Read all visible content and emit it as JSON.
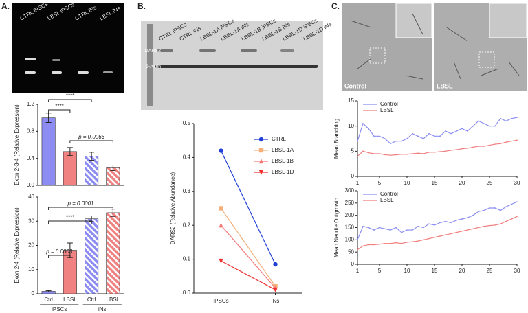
{
  "panel_labels": [
    "A.",
    "B.",
    "C."
  ],
  "gel": {
    "lanes": [
      "CTRL iPSCs",
      "LBSL iPSCs",
      "CTRL iNs",
      "LBSL iNs"
    ]
  },
  "blot": {
    "lanes": [
      "CTRL iPSCs",
      "CTRL iNs",
      "LBSL-1A iPSCs",
      "LBSL-1A iNs",
      "LBSL-1B iPSCs",
      "LBSL-1B iNs",
      "LBSL-1D iPSCs",
      "LBSL-1D iNs"
    ],
    "bands": [
      "DARS2",
      "β-Actin"
    ]
  },
  "micrographs": {
    "labels": [
      "Control",
      "LBSL"
    ]
  },
  "chart_data": [
    {
      "type": "bar",
      "ylabel": "Exon 2-3-4 (Relative Expression)",
      "categories": [
        null,
        null,
        null,
        null
      ],
      "values": [
        1.0,
        0.5,
        0.43,
        0.26
      ],
      "errors": [
        0.07,
        0.06,
        0.06,
        0.04
      ],
      "colors": [
        "#8c8cf2",
        "#f08282",
        "#8c8cf2",
        "#f08282"
      ],
      "patterns": [
        "solid",
        "solid",
        "hatch",
        "hatch"
      ],
      "ylim": [
        0,
        1.2
      ],
      "yticks": [
        {
          "value": 0,
          "label": "0.0"
        },
        0.4,
        0.8,
        1.2
      ],
      "annotations": [
        "****",
        "****",
        "p = 0.0066"
      ]
    },
    {
      "type": "bar",
      "ylabel": "Exon 2-4 (Relative Expression)",
      "categories": [
        "Ctrl",
        "LBSL",
        "Ctrl",
        "LBSL"
      ],
      "groups": [
        "iPSCs",
        "iNs"
      ],
      "values": [
        1,
        18,
        31,
        33.5
      ],
      "errors": [
        0.3,
        3,
        1.2,
        1.5
      ],
      "colors": [
        "#8c8cf2",
        "#f08282",
        "#8c8cf2",
        "#f08282"
      ],
      "patterns": [
        "solid",
        "solid",
        "hatch",
        "hatch"
      ],
      "ylim": [
        0,
        40
      ],
      "yticks": [
        0,
        10,
        20,
        30,
        40
      ],
      "annotations": [
        "p = 0.0003",
        "****",
        "p = 0.0001"
      ]
    },
    {
      "type": "line",
      "ylabel": "DARS2 (Relative Abundance)",
      "categories": [
        "iPSCs",
        "iNs"
      ],
      "series": [
        {
          "name": "CTRL",
          "color": "#1f3fd6",
          "marker": "circle",
          "values": [
            0.42,
            0.085
          ]
        },
        {
          "name": "LBSL-1A",
          "color": "#f5b079",
          "marker": "square",
          "values": [
            0.25,
            0.02
          ]
        },
        {
          "name": "LBSL-1B",
          "color": "#f47a7a",
          "marker": "triangle-up",
          "values": [
            0.2,
            0.015
          ]
        },
        {
          "name": "LBSL-1D",
          "color": "#ee3030",
          "marker": "triangle-down",
          "values": [
            0.095,
            0.01
          ]
        }
      ],
      "ylim": [
        0,
        0.5
      ],
      "yticks": [
        {
          "value": 0,
          "label": "0.0"
        },
        0.1,
        0.2,
        0.3,
        0.4,
        0.5
      ],
      "legend": "right"
    },
    {
      "type": "line",
      "ylabel": "Mean Branching",
      "x": [
        1,
        2,
        3,
        4,
        5,
        6,
        7,
        8,
        9,
        10,
        11,
        12,
        13,
        14,
        15,
        16,
        17,
        18,
        19,
        20,
        21,
        22,
        23,
        24,
        25,
        26,
        27,
        28,
        29,
        30
      ],
      "series": [
        {
          "name": "Control",
          "color": "#8a8ef0",
          "values": [
            7,
            10.5,
            9.5,
            8,
            8,
            7.5,
            6.5,
            7,
            7,
            7.5,
            8.5,
            8,
            7.5,
            8.5,
            8,
            8,
            9,
            8.5,
            9,
            9.5,
            9,
            10,
            11,
            10.5,
            10,
            10,
            11.5,
            11,
            11.5,
            11.7
          ]
        },
        {
          "name": "LBSL",
          "color": "#f07f7f",
          "values": [
            4,
            5,
            4.7,
            4.5,
            4.5,
            4.3,
            4.2,
            4.3,
            4.4,
            4.4,
            4.5,
            4.6,
            4.5,
            4.8,
            4.8,
            4.9,
            5,
            5.2,
            5.3,
            5.5,
            5.6,
            5.8,
            6,
            6,
            6.2,
            6.4,
            6.5,
            6.8,
            7,
            7.2
          ]
        }
      ],
      "xlim": [
        1,
        30
      ],
      "xticks": [
        1,
        5,
        10,
        15,
        20,
        25,
        30
      ],
      "ylim": [
        0,
        15
      ],
      "yticks": [
        0,
        5,
        10,
        15
      ],
      "legend": "top-left"
    },
    {
      "type": "line",
      "ylabel": "Mean Neurite Outgrowth",
      "x": [
        1,
        2,
        3,
        4,
        5,
        6,
        7,
        8,
        9,
        10,
        11,
        12,
        13,
        14,
        15,
        16,
        17,
        18,
        19,
        20,
        21,
        22,
        23,
        24,
        25,
        26,
        27,
        28,
        29,
        30
      ],
      "series": [
        {
          "name": "Control",
          "color": "#8a8ef0",
          "values": [
            100,
            155,
            150,
            140,
            150,
            145,
            140,
            150,
            130,
            140,
            140,
            155,
            150,
            165,
            160,
            170,
            175,
            170,
            180,
            185,
            190,
            200,
            215,
            220,
            230,
            230,
            220,
            235,
            245,
            255
          ]
        },
        {
          "name": "LBSL",
          "color": "#f07f7f",
          "values": [
            60,
            75,
            80,
            80,
            82,
            85,
            85,
            88,
            85,
            90,
            92,
            95,
            100,
            105,
            110,
            115,
            120,
            125,
            130,
            135,
            140,
            145,
            150,
            155,
            158,
            160,
            165,
            175,
            185,
            195
          ]
        }
      ],
      "xlim": [
        1,
        30
      ],
      "xticks": [
        1,
        5,
        10,
        15,
        20,
        25,
        30
      ],
      "ylim": [
        0,
        300
      ],
      "yticks": [
        0,
        50,
        100,
        150,
        200,
        250,
        300
      ],
      "legend": "top-left"
    }
  ]
}
